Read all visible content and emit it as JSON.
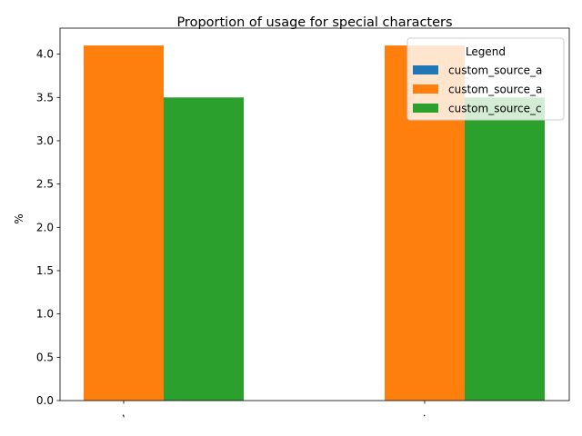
{
  "chart_data": {
    "type": "bar",
    "title": "Proportion of usage for special characters",
    "xlabel": "",
    "ylabel": "%",
    "categories": [
      ",",
      "."
    ],
    "series": [
      {
        "name": "custom_source_a",
        "values": [
          0.0,
          0.0
        ],
        "color": "#1f77b4"
      },
      {
        "name": "custom_source_a",
        "values": [
          4.1,
          4.1
        ],
        "color": "#ff7f0e"
      },
      {
        "name": "custom_source_c",
        "values": [
          3.5,
          3.5
        ],
        "color": "#2ca02c"
      }
    ],
    "ylim": [
      0,
      4.3
    ],
    "yticks": [
      "0.0",
      "0.5",
      "1.0",
      "1.5",
      "2.0",
      "2.5",
      "3.0",
      "3.5",
      "4.0"
    ],
    "grid": false,
    "legend": {
      "title": "Legend",
      "position": "top-right"
    }
  }
}
